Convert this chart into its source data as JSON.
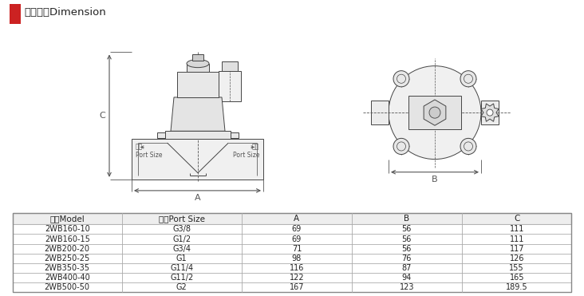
{
  "title": "外型尺寸Dimension",
  "title_square_color": "#cc2222",
  "header_row": [
    "型号Model",
    "口径Port Size",
    "A",
    "B",
    "C"
  ],
  "header_bg": "#eeeeee",
  "rows": [
    [
      "2WB160-10",
      "G3/8",
      "69",
      "56",
      "111"
    ],
    [
      "2WB160-15",
      "G1/2",
      "69",
      "56",
      "111"
    ],
    [
      "2WB200-20",
      "G3/4",
      "71",
      "56",
      "117"
    ],
    [
      "2WB250-25",
      "G1",
      "98",
      "76",
      "126"
    ],
    [
      "2WB350-35",
      "G11/4",
      "116",
      "87",
      "155"
    ],
    [
      "2WB400-40",
      "G11/2",
      "122",
      "94",
      "165"
    ],
    [
      "2WB500-50",
      "G2",
      "167",
      "123",
      "189.5"
    ]
  ],
  "bg_color": "#ffffff",
  "border_color": "#aaaaaa",
  "text_color": "#222222",
  "line_color": "#444444",
  "dim_color": "#555555",
  "font_size": 7.0,
  "header_font_size": 7.5
}
